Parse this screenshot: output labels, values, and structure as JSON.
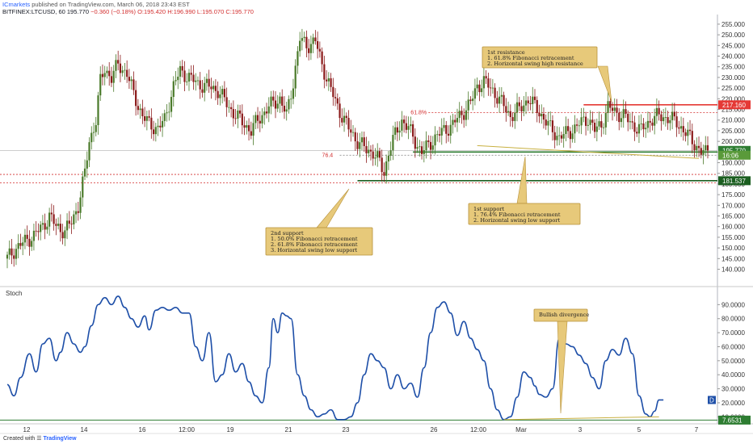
{
  "header": {
    "line1_user": "ICmarkets",
    "line1_rest": " published on TradingView.com, March 06, 2018 23:43 EST",
    "symbol": "BITFINEX:LTCUSD, 60",
    "last": "195.770",
    "change": "−0.360 (−0.18%)",
    "ohlc": "O:195.420 H:196.990 L:195.070 C:195.770"
  },
  "footer": {
    "created_with": "Created with",
    "brand": "TradingView"
  },
  "colors": {
    "up": "#4a7a2a",
    "down": "#8b1a1a",
    "stoch": "#1e4fa8",
    "resist": "#e53935",
    "support": "#2e7d32",
    "note_bg": "#e7c97a",
    "note_border": "#b8923a",
    "callout": "#c8b040"
  },
  "chart_data": [
    {
      "type": "candlestick",
      "title": "",
      "y_axis_side": "right",
      "ylim": [
        133,
        258
      ],
      "y_ticks": [
        140.0,
        145.0,
        150.0,
        155.0,
        160.0,
        165.0,
        170.0,
        175.0,
        180.0,
        185.0,
        190.0,
        195.0,
        200.0,
        205.0,
        210.0,
        215.0,
        220.0,
        225.0,
        230.0,
        235.0,
        240.0,
        245.0,
        250.0,
        255.0
      ],
      "y_tick_labels": [
        "140.000",
        "145.000",
        "150.000",
        "155.000",
        "160.000",
        "165.000",
        "170.000",
        "175.000",
        "180.000",
        "185.000",
        "190.000",
        "195.000",
        "200.000",
        "205.000",
        "210.000",
        "215.000",
        "220.000",
        "225.000",
        "230.000",
        "235.000",
        "240.000",
        "245.000",
        "250.000",
        "255.000"
      ],
      "x_tick_labels": [
        "12",
        "14",
        "16",
        "12:00",
        "19",
        "21",
        "23",
        "26",
        "12:00",
        "Mar",
        "3",
        "5",
        "7"
      ],
      "close_path": [
        [
          0,
          145
        ],
        [
          4,
          150
        ],
        [
          8,
          153
        ],
        [
          12,
          156
        ],
        [
          16,
          160
        ],
        [
          19,
          165
        ],
        [
          22,
          160
        ],
        [
          26,
          158
        ],
        [
          29,
          162
        ],
        [
          32,
          170
        ],
        [
          35,
          185
        ],
        [
          37,
          200
        ],
        [
          40,
          210
        ],
        [
          42,
          228
        ],
        [
          44,
          234
        ],
        [
          47,
          230
        ],
        [
          50,
          236
        ],
        [
          54,
          232
        ],
        [
          57,
          222
        ],
        [
          61,
          212
        ],
        [
          64,
          208
        ],
        [
          68,
          206
        ],
        [
          71,
          210
        ],
        [
          75,
          226
        ],
        [
          78,
          233
        ],
        [
          82,
          230
        ],
        [
          86,
          227
        ],
        [
          90,
          226
        ],
        [
          95,
          224
        ],
        [
          100,
          216
        ],
        [
          105,
          210
        ],
        [
          110,
          205
        ],
        [
          113,
          210
        ],
        [
          117,
          215
        ],
        [
          120,
          218
        ],
        [
          123,
          220
        ],
        [
          126,
          212
        ],
        [
          129,
          228
        ],
        [
          132,
          248
        ],
        [
          135,
          245
        ],
        [
          139,
          247
        ],
        [
          142,
          236
        ],
        [
          146,
          224
        ],
        [
          150,
          214
        ],
        [
          154,
          206
        ],
        [
          158,
          200
        ],
        [
          162,
          196
        ],
        [
          165,
          195
        ],
        [
          168,
          190
        ],
        [
          170,
          185
        ],
        [
          172,
          195
        ],
        [
          175,
          203
        ],
        [
          178,
          210
        ],
        [
          181,
          206
        ],
        [
          184,
          200
        ],
        [
          187,
          195
        ],
        [
          190,
          198
        ],
        [
          193,
          202
        ],
        [
          197,
          205
        ],
        [
          201,
          208
        ],
        [
          205,
          213
        ],
        [
          209,
          218
        ],
        [
          212,
          226
        ],
        [
          215,
          228
        ],
        [
          219,
          224
        ],
        [
          223,
          218
        ],
        [
          227,
          212
        ],
        [
          231,
          215
        ],
        [
          235,
          220
        ],
        [
          240,
          214
        ],
        [
          245,
          206
        ],
        [
          249,
          202
        ],
        [
          253,
          204
        ],
        [
          258,
          208
        ],
        [
          262,
          211
        ],
        [
          265,
          205
        ],
        [
          268,
          208
        ],
        [
          271,
          216
        ],
        [
          274,
          214
        ],
        [
          278,
          212
        ],
        [
          282,
          208
        ],
        [
          286,
          205
        ],
        [
          290,
          210
        ],
        [
          294,
          212
        ],
        [
          298,
          211
        ],
        [
          302,
          209
        ],
        [
          306,
          204
        ],
        [
          310,
          199
        ],
        [
          313,
          195
        ],
        [
          315,
          194.5
        ],
        [
          316,
          195.8
        ]
      ],
      "series_name": "",
      "price_tags": [
        {
          "label": "217.160",
          "value": 217.16,
          "color": "#e53935"
        },
        {
          "label": "195.770",
          "value": 195.77,
          "color": "#2e7d32"
        },
        {
          "label": "16:06",
          "value": 193.5,
          "color": "#5a9a3a"
        },
        {
          "label": "181.537",
          "value": 181.537,
          "color": "#1b5e20"
        }
      ],
      "levels": [
        {
          "value": 217.16,
          "style": "solid",
          "color": "#e53935",
          "from_t": 260
        },
        {
          "value": 213.5,
          "style": "dotted",
          "color": "#d32f2f",
          "label": "61.8%",
          "from_t": 190
        },
        {
          "value": 195.0,
          "style": "solid",
          "color": "#2e7d32",
          "from_t": 183
        },
        {
          "value": 193.5,
          "style": "dotted",
          "color": "#7a7a7a",
          "label": "76.4",
          "from_t": 150
        },
        {
          "value": 181.537,
          "style": "solid",
          "color": "#1b5e20",
          "from_t": 158
        },
        {
          "value": 184.5,
          "style": "dotted",
          "color": "#d32f2f",
          "from_t": 0
        },
        {
          "value": 180.5,
          "style": "dotted",
          "color": "#d32f2f",
          "from_t": 0
        }
      ]
    },
    {
      "type": "line",
      "title": "Stoch",
      "ylim": [
        5,
        100
      ],
      "y_ticks": [
        10,
        20,
        30,
        40,
        50,
        60,
        70,
        80,
        90
      ],
      "y_tick_labels": [
        "10.0000",
        "20.0000",
        "30.0000",
        "40.0000",
        "50.0000",
        "60.0000",
        "70.0000",
        "80.0000",
        "90.0000"
      ],
      "last_tag": "D",
      "low_tag": "7.6531",
      "low_value": 7.65,
      "series": [
        {
          "name": "",
          "points": [
            [
              0,
              33
            ],
            [
              3,
              25
            ],
            [
              6,
              38
            ],
            [
              10,
              55
            ],
            [
              13,
              42
            ],
            [
              16,
              62
            ],
            [
              19,
              66
            ],
            [
              22,
              50
            ],
            [
              24,
              56
            ],
            [
              27,
              70
            ],
            [
              30,
              62
            ],
            [
              33,
              56
            ],
            [
              35,
              60
            ],
            [
              38,
              75
            ],
            [
              41,
              90
            ],
            [
              44,
              95
            ],
            [
              47,
              90
            ],
            [
              50,
              96
            ],
            [
              53,
              88
            ],
            [
              56,
              80
            ],
            [
              59,
              74
            ],
            [
              62,
              82
            ],
            [
              64,
              72
            ],
            [
              67,
              86
            ],
            [
              70,
              88
            ],
            [
              73,
              86
            ],
            [
              76,
              88
            ],
            [
              79,
              84
            ],
            [
              82,
              84
            ],
            [
              85,
              60
            ],
            [
              88,
              50
            ],
            [
              91,
              70
            ],
            [
              94,
              35
            ],
            [
              97,
              40
            ],
            [
              100,
              55
            ],
            [
              103,
              42
            ],
            [
              106,
              48
            ],
            [
              109,
              35
            ],
            [
              112,
              25
            ],
            [
              115,
              20
            ],
            [
              118,
              45
            ],
            [
              120,
              80
            ],
            [
              122,
              70
            ],
            [
              124,
              84
            ],
            [
              126,
              82
            ],
            [
              128,
              80
            ],
            [
              131,
              40
            ],
            [
              134,
              25
            ],
            [
              137,
              15
            ],
            [
              140,
              10
            ],
            [
              143,
              12
            ],
            [
              146,
              15
            ],
            [
              149,
              8
            ],
            [
              152,
              8
            ],
            [
              155,
              10
            ],
            [
              158,
              20
            ],
            [
              161,
              40
            ],
            [
              164,
              55
            ],
            [
              167,
              50
            ],
            [
              170,
              45
            ],
            [
              173,
              30
            ],
            [
              176,
              40
            ],
            [
              179,
              30
            ],
            [
              182,
              34
            ],
            [
              185,
              24
            ],
            [
              188,
              45
            ],
            [
              191,
              70
            ],
            [
              194,
              88
            ],
            [
              197,
              92
            ],
            [
              200,
              84
            ],
            [
              203,
              68
            ],
            [
              206,
              78
            ],
            [
              209,
              66
            ],
            [
              212,
              58
            ],
            [
              215,
              50
            ],
            [
              218,
              30
            ],
            [
              221,
              15
            ],
            [
              224,
              8
            ],
            [
              227,
              10
            ],
            [
              230,
              24
            ],
            [
              233,
              42
            ],
            [
              236,
              38
            ],
            [
              238,
              32
            ],
            [
              240,
              26
            ],
            [
              243,
              24
            ],
            [
              246,
              30
            ],
            [
              249,
              66
            ],
            [
              252,
              62
            ],
            [
              255,
              60
            ],
            [
              258,
              54
            ],
            [
              261,
              48
            ],
            [
              264,
              38
            ],
            [
              267,
              30
            ],
            [
              270,
              50
            ],
            [
              273,
              58
            ],
            [
              276,
              54
            ],
            [
              279,
              66
            ],
            [
              282,
              55
            ],
            [
              285,
              25
            ],
            [
              288,
              12
            ],
            [
              290,
              10
            ],
            [
              292,
              14
            ],
            [
              294,
              22
            ],
            [
              296,
              22
            ]
          ]
        }
      ],
      "divergence_line": {
        "x0": 224,
        "y0": 8,
        "x1": 294,
        "y1": 10
      }
    }
  ],
  "annotations": {
    "resistance": [
      "1st resistance",
      "1. 61.8% Fibonacci retracement",
      "2. Horizontal swing high resistance"
    ],
    "support1": [
      "1st support",
      "1. 76.4% Fibonacci retracement",
      "2. Horizontal swing low support"
    ],
    "support2": [
      "2nd support",
      "1. 50.0% Fibonacci retracement",
      "2. 61.8% Fibonacci retracement",
      "3. Horizontal swing low support"
    ],
    "divergence": [
      "Bullish divergence"
    ]
  }
}
